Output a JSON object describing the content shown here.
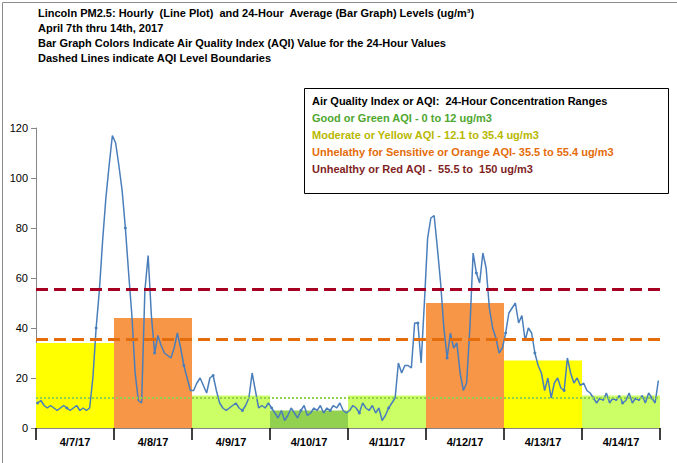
{
  "chart_data": {
    "type": "bar",
    "title": "Lincoln PM2.5: Hourly  (Line Plot)  and 24-Hour  Average (Bar Graph) Levels (ug/m³)",
    "subtitle": "April 7th thru 14th, 2017",
    "annotations": [
      "Bar Graph Colors Indicate Air Quality Index (AQI) Value for the 24-Hour Values",
      "Dashed Lines indicate AQI Level Boundaries"
    ],
    "aqi_box": {
      "title": "Air Quality Index or AQI:  24-Hour Concentration Ranges",
      "items": [
        {
          "text": "Good or Green AQI - 0 to 12 ug/m3",
          "color": "#4ea72e"
        },
        {
          "text": "Moderate or Yellow AQI - 12.1 to 35.4 ug/m3",
          "color": "#b8b800"
        },
        {
          "text": "Unhelathy for Sensitive or Orange AQI- 35.5 to 55.4 ug/m3",
          "color": "#e46c0a"
        },
        {
          "text": "Unhealthy or Red AQI -  55.5 to  150 ug/m3",
          "color": "#7f1f1f"
        }
      ]
    },
    "categories": [
      "4/7/17",
      "4/8/17",
      "4/9/17",
      "4/10/17",
      "4/11/17",
      "4/12/17",
      "4/13/17",
      "4/14/17"
    ],
    "series": [
      {
        "type": "bar",
        "colors": [
          "#ffff00",
          "#f79646",
          "#ccff66",
          "#92d050",
          "#ccff66",
          "#f79646",
          "#ffff00",
          "#ccff66"
        ],
        "values": [
          34,
          44,
          13,
          7,
          13,
          50,
          27,
          13
        ]
      },
      {
        "type": "line",
        "color": "#4a7ebb",
        "marker": "circle",
        "values": [
          [
            10,
            11,
            9,
            8,
            9,
            8,
            7,
            8,
            9,
            8,
            7,
            8,
            9,
            7,
            8,
            7,
            8,
            20,
            40,
            55,
            75,
            92,
            105,
            117
          ],
          [
            114,
            105,
            95,
            80,
            62,
            45,
            22,
            11,
            10,
            55,
            69,
            45,
            30,
            37,
            33,
            30,
            29,
            28,
            32,
            38,
            32,
            25,
            20,
            15
          ],
          [
            15,
            18,
            20,
            17,
            14,
            20,
            21,
            15,
            10,
            8,
            7,
            8,
            9,
            10,
            8,
            7,
            9,
            12,
            22,
            15,
            8,
            9,
            8,
            10
          ],
          [
            8,
            6,
            4,
            7,
            3,
            5,
            8,
            6,
            4,
            7,
            9,
            5,
            6,
            8,
            7,
            9,
            6,
            8,
            7,
            9,
            8,
            10,
            7,
            6
          ],
          [
            7,
            9,
            8,
            6,
            10,
            8,
            7,
            9,
            6,
            8,
            3,
            5,
            8,
            10,
            12,
            26,
            22,
            25,
            25,
            24,
            42,
            42,
            26,
            50
          ],
          [
            76,
            84,
            85,
            72,
            58,
            40,
            28,
            38,
            32,
            34,
            22,
            15,
            18,
            40,
            70,
            62,
            58,
            70,
            64,
            48,
            40,
            36,
            30,
            32
          ],
          [
            38,
            46,
            48,
            50,
            42,
            45,
            35,
            40,
            38,
            30,
            25,
            22,
            15,
            20,
            12,
            18,
            20,
            16,
            15,
            28,
            22,
            18,
            20,
            17
          ],
          [
            18,
            15,
            14,
            12,
            10,
            12,
            11,
            14,
            10,
            12,
            11,
            13,
            10,
            11,
            14,
            10,
            12,
            11,
            13,
            10,
            14,
            12,
            10,
            19
          ]
        ]
      }
    ],
    "thresholds": [
      {
        "value": 12,
        "color": "#92d050",
        "line_style": "dotted"
      },
      {
        "value": 35.5,
        "color": "#e46c0a",
        "line_style": "dashed"
      },
      {
        "value": 55.5,
        "color": "#a50021",
        "line_style": "dashed"
      }
    ],
    "ylim": [
      0,
      120
    ],
    "yticks": [
      0,
      20,
      40,
      60,
      80,
      100,
      120
    ],
    "grid": false
  }
}
